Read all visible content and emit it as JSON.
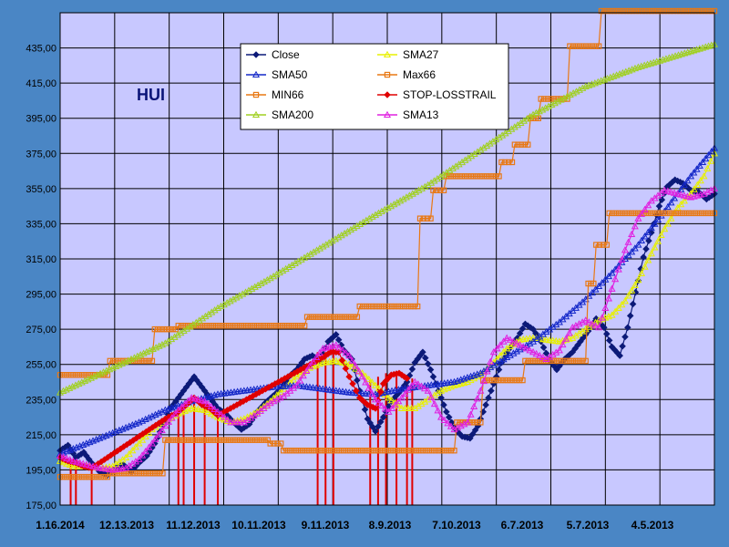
{
  "chart_data": {
    "type": "line",
    "title": "HUI",
    "xlabel": "",
    "ylabel": "",
    "ylim": [
      175,
      455
    ],
    "y_ticks": [
      "175,00",
      "195,00",
      "215,00",
      "235,00",
      "255,00",
      "275,00",
      "295,00",
      "315,00",
      "335,00",
      "355,00",
      "375,00",
      "395,00",
      "415,00",
      "435,00"
    ],
    "x_tick_labels": [
      "1.16.2014",
      "12.13.2013",
      "11.12.2013",
      "10.11.2013",
      "9.11.2013",
      "8.9.2013",
      "7.10.2013",
      "6.7.2013",
      "5.7.2013",
      "4.5.2013"
    ],
    "x_direction": "reverse-chronological (newest at left)",
    "grid": true,
    "legend_position": "top-center",
    "colors": {
      "outer_background": "#4a86c5",
      "plot_background": "#c8c8ff",
      "grid": "#000000"
    },
    "series": [
      {
        "name": "Close",
        "color": "#0c1a78",
        "marker": "diamond",
        "points": [
          [
            0,
            206
          ],
          [
            3,
            209
          ],
          [
            6,
            202
          ],
          [
            9,
            205
          ],
          [
            12,
            199
          ],
          [
            15,
            194
          ],
          [
            18,
            192
          ],
          [
            21,
            196
          ],
          [
            24,
            198
          ],
          [
            27,
            194
          ],
          [
            30,
            199
          ],
          [
            33,
            203
          ],
          [
            36,
            210
          ],
          [
            39,
            220
          ],
          [
            42,
            230
          ],
          [
            45,
            236
          ],
          [
            48,
            242
          ],
          [
            51,
            248
          ],
          [
            54,
            242
          ],
          [
            57,
            236
          ],
          [
            60,
            230
          ],
          [
            63,
            227
          ],
          [
            66,
            222
          ],
          [
            69,
            218
          ],
          [
            72,
            221
          ],
          [
            75,
            228
          ],
          [
            78,
            233
          ],
          [
            81,
            237
          ],
          [
            84,
            241
          ],
          [
            87,
            248
          ],
          [
            90,
            252
          ],
          [
            93,
            258
          ],
          [
            96,
            260
          ],
          [
            99,
            257
          ],
          [
            102,
            268
          ],
          [
            105,
            272
          ],
          [
            108,
            263
          ],
          [
            111,
            258
          ],
          [
            114,
            240
          ],
          [
            117,
            224
          ],
          [
            120,
            217
          ],
          [
            123,
            225
          ],
          [
            126,
            234
          ],
          [
            129,
            239
          ],
          [
            132,
            245
          ],
          [
            135,
            256
          ],
          [
            138,
            262
          ],
          [
            141,
            252
          ],
          [
            144,
            240
          ],
          [
            147,
            228
          ],
          [
            150,
            219
          ],
          [
            153,
            214
          ],
          [
            156,
            213
          ],
          [
            159,
            220
          ],
          [
            162,
            232
          ],
          [
            165,
            244
          ],
          [
            168,
            256
          ],
          [
            171,
            264
          ],
          [
            174,
            270
          ],
          [
            177,
            278
          ],
          [
            180,
            275
          ],
          [
            183,
            268
          ],
          [
            186,
            258
          ],
          [
            189,
            252
          ],
          [
            192,
            258
          ],
          [
            195,
            262
          ],
          [
            198,
            268
          ],
          [
            201,
            274
          ],
          [
            204,
            281
          ],
          [
            207,
            276
          ],
          [
            210,
            265
          ],
          [
            213,
            260
          ],
          [
            216,
            276
          ],
          [
            219,
            296
          ],
          [
            222,
            316
          ],
          [
            225,
            330
          ],
          [
            228,
            345
          ],
          [
            231,
            356
          ],
          [
            234,
            360
          ],
          [
            237,
            358
          ],
          [
            240,
            354
          ],
          [
            243,
            353
          ],
          [
            246,
            349
          ],
          [
            249,
            352
          ]
        ]
      },
      {
        "name": "SMA27",
        "color": "#e8f000",
        "marker": "triangle",
        "points": [
          [
            0,
            200
          ],
          [
            5,
            197
          ],
          [
            10,
            197
          ],
          [
            15,
            196
          ],
          [
            20,
            197
          ],
          [
            25,
            202
          ],
          [
            30,
            210
          ],
          [
            35,
            218
          ],
          [
            40,
            223
          ],
          [
            45,
            227
          ],
          [
            50,
            230
          ],
          [
            55,
            229
          ],
          [
            60,
            225
          ],
          [
            65,
            222
          ],
          [
            70,
            224
          ],
          [
            75,
            228
          ],
          [
            80,
            234
          ],
          [
            85,
            241
          ],
          [
            90,
            248
          ],
          [
            95,
            253
          ],
          [
            100,
            256
          ],
          [
            105,
            257
          ],
          [
            110,
            255
          ],
          [
            115,
            250
          ],
          [
            120,
            243
          ],
          [
            125,
            236
          ],
          [
            130,
            230
          ],
          [
            135,
            230
          ],
          [
            140,
            235
          ],
          [
            145,
            240
          ],
          [
            150,
            243
          ],
          [
            155,
            245
          ],
          [
            160,
            249
          ],
          [
            165,
            256
          ],
          [
            170,
            264
          ],
          [
            175,
            269
          ],
          [
            180,
            270
          ],
          [
            185,
            269
          ],
          [
            190,
            268
          ],
          [
            195,
            270
          ],
          [
            200,
            275
          ],
          [
            205,
            280
          ],
          [
            210,
            283
          ],
          [
            215,
            291
          ],
          [
            220,
            303
          ],
          [
            225,
            318
          ],
          [
            230,
            332
          ],
          [
            235,
            344
          ],
          [
            240,
            352
          ],
          [
            245,
            362
          ],
          [
            249,
            375
          ]
        ]
      },
      {
        "name": "SMA50",
        "color": "#1428c8",
        "marker": "triangle",
        "points": [
          [
            0,
            204
          ],
          [
            10,
            210
          ],
          [
            20,
            216
          ],
          [
            30,
            222
          ],
          [
            40,
            229
          ],
          [
            50,
            234
          ],
          [
            60,
            238
          ],
          [
            70,
            240
          ],
          [
            80,
            242
          ],
          [
            90,
            243
          ],
          [
            100,
            241
          ],
          [
            110,
            239
          ],
          [
            120,
            238
          ],
          [
            130,
            241
          ],
          [
            140,
            243
          ],
          [
            150,
            245
          ],
          [
            160,
            250
          ],
          [
            170,
            259
          ],
          [
            180,
            268
          ],
          [
            190,
            279
          ],
          [
            200,
            292
          ],
          [
            210,
            307
          ],
          [
            220,
            323
          ],
          [
            230,
            342
          ],
          [
            240,
            362
          ],
          [
            249,
            378
          ]
        ]
      },
      {
        "name": "Max66",
        "color": "#e87814",
        "marker": "square",
        "points": [
          [
            0,
            249
          ],
          [
            18,
            249
          ],
          [
            19,
            257
          ],
          [
            35,
            257
          ],
          [
            36,
            275
          ],
          [
            44,
            275
          ],
          [
            45,
            277
          ],
          [
            93,
            277
          ],
          [
            94,
            282
          ],
          [
            113,
            282
          ],
          [
            114,
            288
          ],
          [
            136,
            288
          ],
          [
            137,
            338
          ],
          [
            141,
            338
          ],
          [
            142,
            354
          ],
          [
            146,
            354
          ],
          [
            147,
            362
          ],
          [
            167,
            362
          ],
          [
            168,
            370
          ],
          [
            172,
            370
          ],
          [
            173,
            380
          ],
          [
            178,
            380
          ],
          [
            179,
            395
          ],
          [
            182,
            395
          ],
          [
            183,
            406
          ],
          [
            193,
            406
          ],
          [
            194,
            436
          ],
          [
            205,
            436
          ],
          [
            206,
            456
          ],
          [
            249,
            456
          ]
        ]
      },
      {
        "name": "MIN66",
        "color": "#e87814",
        "marker": "square",
        "points": [
          [
            0,
            191
          ],
          [
            18,
            191
          ],
          [
            19,
            193
          ],
          [
            39,
            193
          ],
          [
            40,
            212
          ],
          [
            79,
            212
          ],
          [
            80,
            210
          ],
          [
            84,
            210
          ],
          [
            85,
            206
          ],
          [
            150,
            206
          ],
          [
            151,
            222
          ],
          [
            160,
            222
          ],
          [
            161,
            246
          ],
          [
            176,
            246
          ],
          [
            177,
            257
          ],
          [
            200,
            257
          ],
          [
            201,
            301
          ],
          [
            203,
            301
          ],
          [
            204,
            323
          ],
          [
            208,
            323
          ],
          [
            209,
            341
          ],
          [
            249,
            341
          ]
        ]
      },
      {
        "name": "STOP-LOSSTRAIL",
        "color": "#e00000",
        "marker": "diamond",
        "points": [
          [
            0,
            202
          ],
          [
            3,
            200
          ],
          [
            6,
            199
          ],
          [
            9,
            197
          ],
          [
            12,
            196
          ],
          [
            40,
            224
          ],
          [
            45,
            228
          ],
          [
            48,
            232
          ],
          [
            51,
            236
          ],
          [
            54,
            232
          ],
          [
            57,
            230
          ],
          [
            60,
            226
          ],
          [
            100,
            259
          ],
          [
            103,
            262
          ],
          [
            106,
            262
          ],
          [
            110,
            248
          ],
          [
            114,
            236
          ],
          [
            117,
            232
          ],
          [
            120,
            230
          ],
          [
            123,
            244
          ],
          [
            126,
            249
          ],
          [
            129,
            250
          ],
          [
            132,
            247
          ]
        ]
      },
      {
        "name": "SMA200",
        "color": "#a0d020",
        "marker": "triangle",
        "points": [
          [
            0,
            239
          ],
          [
            20,
            253
          ],
          [
            40,
            267
          ],
          [
            60,
            287
          ],
          [
            80,
            304
          ],
          [
            100,
            322
          ],
          [
            120,
            340
          ],
          [
            140,
            357
          ],
          [
            160,
            377
          ],
          [
            180,
            397
          ],
          [
            200,
            413
          ],
          [
            220,
            424
          ],
          [
            240,
            433
          ],
          [
            249,
            437
          ]
        ]
      },
      {
        "name": "SMA13",
        "color": "#e020e0",
        "marker": "triangle",
        "points": [
          [
            0,
            203
          ],
          [
            5,
            200
          ],
          [
            10,
            198
          ],
          [
            15,
            196
          ],
          [
            20,
            195
          ],
          [
            25,
            196
          ],
          [
            30,
            201
          ],
          [
            35,
            210
          ],
          [
            40,
            220
          ],
          [
            45,
            229
          ],
          [
            50,
            236
          ],
          [
            55,
            234
          ],
          [
            60,
            228
          ],
          [
            65,
            222
          ],
          [
            70,
            222
          ],
          [
            75,
            227
          ],
          [
            80,
            233
          ],
          [
            85,
            237
          ],
          [
            90,
            243
          ],
          [
            95,
            254
          ],
          [
            100,
            264
          ],
          [
            105,
            266
          ],
          [
            110,
            260
          ],
          [
            115,
            248
          ],
          [
            120,
            235
          ],
          [
            125,
            228
          ],
          [
            130,
            236
          ],
          [
            135,
            245
          ],
          [
            140,
            240
          ],
          [
            145,
            225
          ],
          [
            150,
            218
          ],
          [
            155,
            222
          ],
          [
            160,
            240
          ],
          [
            165,
            262
          ],
          [
            170,
            270
          ],
          [
            175,
            266
          ],
          [
            180,
            262
          ],
          [
            185,
            258
          ],
          [
            190,
            263
          ],
          [
            195,
            276
          ],
          [
            200,
            280
          ],
          [
            205,
            276
          ],
          [
            210,
            298
          ],
          [
            215,
            320
          ],
          [
            220,
            338
          ],
          [
            225,
            348
          ],
          [
            230,
            354
          ],
          [
            235,
            352
          ],
          [
            240,
            350
          ],
          [
            245,
            352
          ],
          [
            249,
            355
          ]
        ]
      }
    ],
    "stop_markers_x": [
      4,
      6,
      12,
      45,
      47,
      51,
      55,
      60,
      98,
      101,
      104,
      118,
      121,
      124,
      128,
      132,
      134
    ],
    "stop_markers_y_top": [
      200,
      200,
      197,
      228,
      230,
      236,
      232,
      226,
      262,
      262,
      262,
      246,
      248,
      250,
      250,
      249,
      247
    ]
  }
}
